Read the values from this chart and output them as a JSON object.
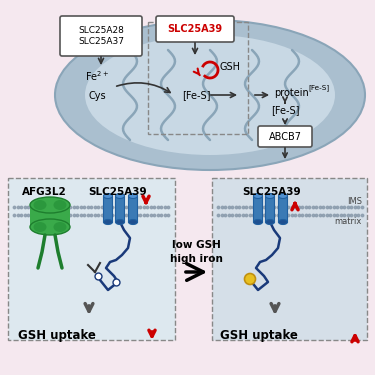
{
  "bg_color": "#f5e8ef",
  "mito_color": "#aabfcf",
  "mito_inner_color": "#c8d8e4",
  "panel_bg": "#dde8ef",
  "panel_bg2": "#d5dfe8",
  "dashed_box_color": "#888888",
  "slc25a28_37_label": "SLC25A28\nSLC25A37",
  "slc25a39_label": "SLC25A39",
  "fes_label": "[Fe-S]",
  "abcb7_label": "ABCB7",
  "gsh_label": "GSH",
  "arrow_color": "#333333",
  "red_arrow_color": "#cc0000",
  "green_color": "#3aaa4a",
  "blue_color": "#3a7ab5",
  "dark_blue": "#1a3a7a",
  "low_gsh_high_iron": "low GSH\nhigh iron",
  "gsh_uptake": "GSH uptake",
  "afg3l2_label": "AFG3L2",
  "ims_label": "IMS",
  "matrix_label": "matrix",
  "cys_label": "Cys",
  "membrane_dot_color": "#8899aa"
}
